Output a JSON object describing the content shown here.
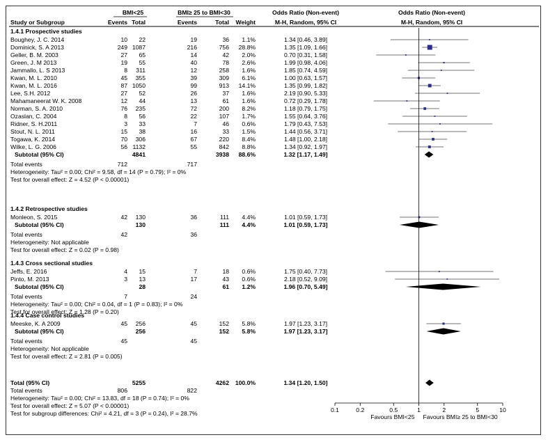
{
  "chart_data": {
    "type": "forest",
    "title": "",
    "headers": {
      "group1": "BMI<25",
      "group2": "BMI≥ 25 to BMI<30",
      "col_study": "Study or Subgroup",
      "col_events1": "Events",
      "col_total1": "Total",
      "col_events2": "Events",
      "col_total2": "Total",
      "col_weight": "Weight",
      "or_text_title": "Odds Ratio (Non-event)",
      "or_text_sub": "M-H, Random, 95% CI",
      "or_plot_title": "Odds Ratio (Non-event)",
      "or_plot_sub": "M-H, Random, 95% CI"
    },
    "subgroups": [
      {
        "title": "1.4.1 Prospective studies",
        "studies": [
          {
            "name": "Boughey, J. C. 2014",
            "e1": "10",
            "n1": "22",
            "e2": "19",
            "n2": "36",
            "weight": "1.1%",
            "or_text": "1.34 [0.46, 3.89]",
            "or": 1.34,
            "lo": 0.46,
            "hi": 3.89
          },
          {
            "name": "Dominick, S. A 2013",
            "e1": "249",
            "n1": "1087",
            "e2": "216",
            "n2": "756",
            "weight": "28.8%",
            "or_text": "1.35 [1.09, 1.66]",
            "or": 1.35,
            "lo": 1.09,
            "hi": 1.66
          },
          {
            "name": "Geller, B. M. 2003",
            "e1": "27",
            "n1": "65",
            "e2": "14",
            "n2": "42",
            "weight": "2.0%",
            "or_text": "0.70 [0.31, 1.58]",
            "or": 0.7,
            "lo": 0.31,
            "hi": 1.58
          },
          {
            "name": "Green, J. M 2013",
            "e1": "19",
            "n1": "55",
            "e2": "40",
            "n2": "78",
            "weight": "2.6%",
            "or_text": "1.99 [0.98, 4.06]",
            "or": 1.99,
            "lo": 0.98,
            "hi": 4.06
          },
          {
            "name": "Jammallo, L. S 2013",
            "e1": "8",
            "n1": "311",
            "e2": "12",
            "n2": "258",
            "weight": "1.6%",
            "or_text": "1.85 [0.74, 4.59]",
            "or": 1.85,
            "lo": 0.74,
            "hi": 4.59
          },
          {
            "name": "Kwan, M. L. 2010",
            "e1": "45",
            "n1": "355",
            "e2": "39",
            "n2": "309",
            "weight": "6.1%",
            "or_text": "1.00 [0.63, 1.57]",
            "or": 1.0,
            "lo": 0.63,
            "hi": 1.57
          },
          {
            "name": "Kwan, M. L. 2016",
            "e1": "87",
            "n1": "1050",
            "e2": "99",
            "n2": "913",
            "weight": "14.1%",
            "or_text": "1.35 [0.99, 1.82]",
            "or": 1.35,
            "lo": 0.99,
            "hi": 1.82
          },
          {
            "name": "Lee, S.H. 2012",
            "e1": "27",
            "n1": "52",
            "e2": "26",
            "n2": "37",
            "weight": "1.6%",
            "or_text": "2.19 [0.90, 5.33]",
            "or": 2.19,
            "lo": 0.9,
            "hi": 5.33
          },
          {
            "name": "Mahamaneerat W. K. 2008",
            "e1": "12",
            "n1": "44",
            "e2": "13",
            "n2": "61",
            "weight": "1.6%",
            "or_text": "0.72 [0.29, 1.78]",
            "or": 0.72,
            "lo": 0.29,
            "hi": 1.78
          },
          {
            "name": "Norman, S. A. 2010",
            "e1": "76",
            "n1": "235",
            "e2": "72",
            "n2": "200",
            "weight": "8.2%",
            "or_text": "1.18 [0.79, 1.75]",
            "or": 1.18,
            "lo": 0.79,
            "hi": 1.75
          },
          {
            "name": "Ozaslan, C. 2004",
            "e1": "8",
            "n1": "56",
            "e2": "22",
            "n2": "107",
            "weight": "1.7%",
            "or_text": "1.55 [0.64, 3.76]",
            "or": 1.55,
            "lo": 0.64,
            "hi": 3.76
          },
          {
            "name": "Ridner, S. H.2011",
            "e1": "3",
            "n1": "33",
            "e2": "7",
            "n2": "46",
            "weight": "0.6%",
            "or_text": "1.79 [0.43, 7.53]",
            "or": 1.79,
            "lo": 0.43,
            "hi": 7.53
          },
          {
            "name": "Stout, N. L. 2011",
            "e1": "15",
            "n1": "38",
            "e2": "16",
            "n2": "33",
            "weight": "1.5%",
            "or_text": "1.44 [0.56, 3.71]",
            "or": 1.44,
            "lo": 0.56,
            "hi": 3.71
          },
          {
            "name": "Togawa, K. 2014",
            "e1": "70",
            "n1": "306",
            "e2": "67",
            "n2": "220",
            "weight": "8.4%",
            "or_text": "1.48 [1.00, 2.18]",
            "or": 1.48,
            "lo": 1.0,
            "hi": 2.18
          },
          {
            "name": "Wilke, L. G. 2006",
            "e1": "56",
            "n1": "1132",
            "e2": "55",
            "n2": "842",
            "weight": "8.8%",
            "or_text": "1.34 [0.92, 1.97]",
            "or": 1.34,
            "lo": 0.92,
            "hi": 1.97
          }
        ],
        "subtotal": {
          "label": "Subtotal (95% CI)",
          "n1": "4841",
          "n2": "3938",
          "weight": "88.6%",
          "or_text": "1.32 [1.17, 1.49]",
          "or": 1.32,
          "lo": 1.17,
          "hi": 1.49
        },
        "total_events": {
          "label": "Total events",
          "e1": "712",
          "e2": "717"
        },
        "heterogeneity": "Heterogeneity: Tau² = 0.00; Chi² = 9.58, df = 14 (P = 0.79); I² = 0%",
        "overall_effect": "Test for overall effect: Z = 4.52 (P < 0.00001)"
      },
      {
        "title": "1.4.2 Retrospective studies",
        "studies": [
          {
            "name": "Monleon, S. 2015",
            "e1": "42",
            "n1": "130",
            "e2": "36",
            "n2": "111",
            "weight": "4.4%",
            "or_text": "1.01 [0.59, 1.73]",
            "or": 1.01,
            "lo": 0.59,
            "hi": 1.73
          }
        ],
        "subtotal": {
          "label": "Subtotal (95% CI)",
          "n1": "130",
          "n2": "111",
          "weight": "4.4%",
          "or_text": "1.01 [0.59, 1.73]",
          "or": 1.01,
          "lo": 0.59,
          "hi": 1.73
        },
        "total_events": {
          "label": "Total events",
          "e1": "42",
          "e2": "36"
        },
        "heterogeneity": "Heterogeneity: Not applicable",
        "overall_effect": "Test for overall effect: Z = 0.02 (P = 0.98)"
      },
      {
        "title": "1.4.3 Cross sectional studies",
        "studies": [
          {
            "name": "Jeffs, E. 2016",
            "e1": "4",
            "n1": "15",
            "e2": "7",
            "n2": "18",
            "weight": "0.6%",
            "or_text": "1.75 [0.40, 7.73]",
            "or": 1.75,
            "lo": 0.4,
            "hi": 7.73
          },
          {
            "name": "Pinto, M. 2013",
            "e1": "3",
            "n1": "13",
            "e2": "17",
            "n2": "43",
            "weight": "0.6%",
            "or_text": "2.18 [0.52, 9.09]",
            "or": 2.18,
            "lo": 0.52,
            "hi": 9.09
          }
        ],
        "subtotal": {
          "label": "Subtotal (95% CI)",
          "n1": "28",
          "n2": "61",
          "weight": "1.2%",
          "or_text": "1.96 [0.70, 5.49]",
          "or": 1.96,
          "lo": 0.7,
          "hi": 5.49
        },
        "total_events": {
          "label": "Total events",
          "e1": "7",
          "e2": "24"
        },
        "heterogeneity": "Heterogeneity: Tau² = 0.00; Chi² = 0.04, df = 1 (P = 0.83); I² = 0%",
        "overall_effect": "Test for overall effect: Z = 1.28 (P = 0.20)"
      },
      {
        "title": "1.4.4 Case control studies",
        "studies": [
          {
            "name": "Meeske, K. A 2009",
            "e1": "45",
            "n1": "256",
            "e2": "45",
            "n2": "152",
            "weight": "5.8%",
            "or_text": "1.97 [1.23, 3.17]",
            "or": 1.97,
            "lo": 1.23,
            "hi": 3.17
          }
        ],
        "subtotal": {
          "label": "Subtotal (95% CI)",
          "n1": "256",
          "n2": "152",
          "weight": "5.8%",
          "or_text": "1.97 [1.23, 3.17]",
          "or": 1.97,
          "lo": 1.23,
          "hi": 3.17
        },
        "total_events": {
          "label": "Total events",
          "e1": "45",
          "e2": "45"
        },
        "heterogeneity": "Heterogeneity: Not applicable",
        "overall_effect": "Test for overall effect: Z = 2.81 (P = 0.005)"
      }
    ],
    "total": {
      "label": "Total (95% CI)",
      "n1": "5255",
      "n2": "4262",
      "weight": "100.0%",
      "or_text": "1.34 [1.20, 1.50]",
      "or": 1.34,
      "lo": 1.2,
      "hi": 1.5
    },
    "total_events": {
      "label": "Total events",
      "e1": "806",
      "e2": "822"
    },
    "heterogeneity": "Heterogeneity: Tau² = 0.00; Chi² = 13.83, df = 18 (P = 0.74); I² = 0%",
    "overall_effect": "Test for overall effect: Z = 5.07 (P < 0.00001)",
    "subgroup_differences": "Test for subgroup differences: Chi² = 4.21, df = 3 (P = 0.24), I² = 28.7%",
    "x_axis": {
      "scale": "log",
      "xlim": [
        0.1,
        10
      ],
      "ticks": [
        0.1,
        0.2,
        0.5,
        1,
        2,
        5,
        10
      ],
      "tick_labels": [
        "0.1",
        "0.2",
        "0.5",
        "1",
        "2",
        "5",
        "10"
      ],
      "favours_left": "Favours BMI<25",
      "favours_right": "Favours BMI≥ 25 to BMI<30"
    },
    "colors": {
      "study_marker": "#2b2e8c",
      "diamond": "#000000"
    }
  }
}
